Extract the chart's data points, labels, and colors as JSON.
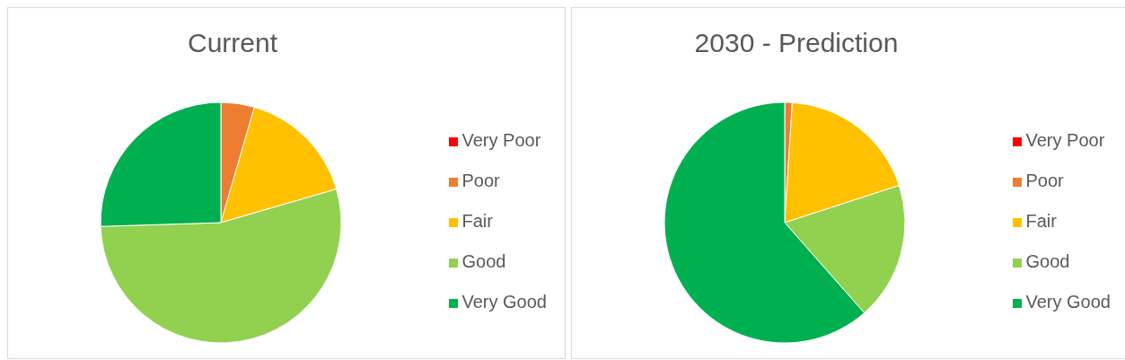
{
  "chart_data": [
    {
      "type": "pie",
      "title": "Current",
      "categories": [
        "Very Poor",
        "Poor",
        "Fair",
        "Good",
        "Very Good"
      ],
      "values": [
        0,
        4.5,
        16,
        54,
        25.5
      ],
      "colors": [
        "#ff0000",
        "#ed7d31",
        "#ffc000",
        "#92d050",
        "#00b050"
      ],
      "legend": "right"
    },
    {
      "type": "pie",
      "title": "2030 - Prediction",
      "categories": [
        "Very Poor",
        "Poor",
        "Fair",
        "Good",
        "Very Good"
      ],
      "values": [
        0,
        1,
        19,
        18.5,
        61.5
      ],
      "colors": [
        "#ff0000",
        "#ed7d31",
        "#ffc000",
        "#92d050",
        "#00b050"
      ],
      "legend": "right"
    }
  ]
}
